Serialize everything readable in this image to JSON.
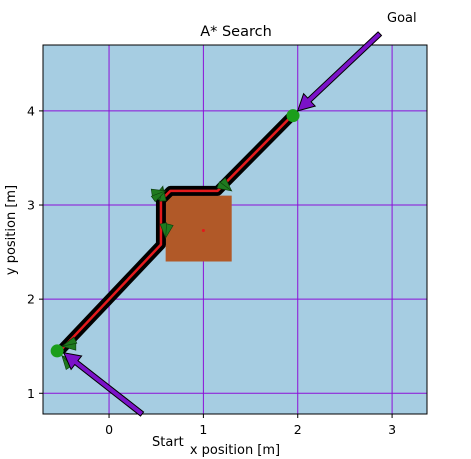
{
  "chart_data": {
    "type": "line",
    "title": "A* Search",
    "xlabel": "x position [m]",
    "ylabel": "y position [m]",
    "xlim": [
      -0.7,
      3.37
    ],
    "ylim": [
      0.78,
      4.7
    ],
    "xticks": [
      0,
      1,
      2,
      3
    ],
    "yticks": [
      1,
      2,
      3,
      4
    ],
    "xtick_labels": [
      "0",
      "1",
      "2",
      "3"
    ],
    "ytick_labels": [
      "1",
      "2",
      "3",
      "4"
    ],
    "grid": true,
    "colors": {
      "background": "#a6cde2",
      "grid": "#8b10d8",
      "obstacle": "#b15928",
      "path_outline": "#000000",
      "path": "#e31a1c",
      "node": "#1b9e1b",
      "arrow": "#7b12c8",
      "heading_marker": "#1f7a1f"
    },
    "obstacle": {
      "x": [
        0.6,
        1.3
      ],
      "y": [
        2.4,
        3.1
      ],
      "center": [
        1.0,
        2.73
      ]
    },
    "path": {
      "x": [
        -0.5,
        0.55,
        0.55,
        0.65,
        1.15,
        1.95
      ],
      "y": [
        1.47,
        2.58,
        3.05,
        3.15,
        3.15,
        3.96
      ]
    },
    "start": {
      "x": -0.55,
      "y": 1.45,
      "label": "Start"
    },
    "goal": {
      "x": 1.95,
      "y": 3.95,
      "label": "Goal"
    },
    "arrows": [
      {
        "from": [
          0.35,
          0.78
        ],
        "to": [
          -0.48,
          1.43
        ]
      },
      {
        "from": [
          2.87,
          4.82
        ],
        "to": [
          2.0,
          4.0
        ]
      }
    ],
    "heading_markers": [
      {
        "x": -0.5,
        "y": 1.5
      },
      {
        "x": -0.5,
        "y": 1.4
      },
      {
        "x": 0.57,
        "y": 3.2
      },
      {
        "x": 0.6,
        "y": 3.15
      },
      {
        "x": 1.3,
        "y": 3.15
      },
      {
        "x": 0.6,
        "y": 2.65
      }
    ]
  }
}
